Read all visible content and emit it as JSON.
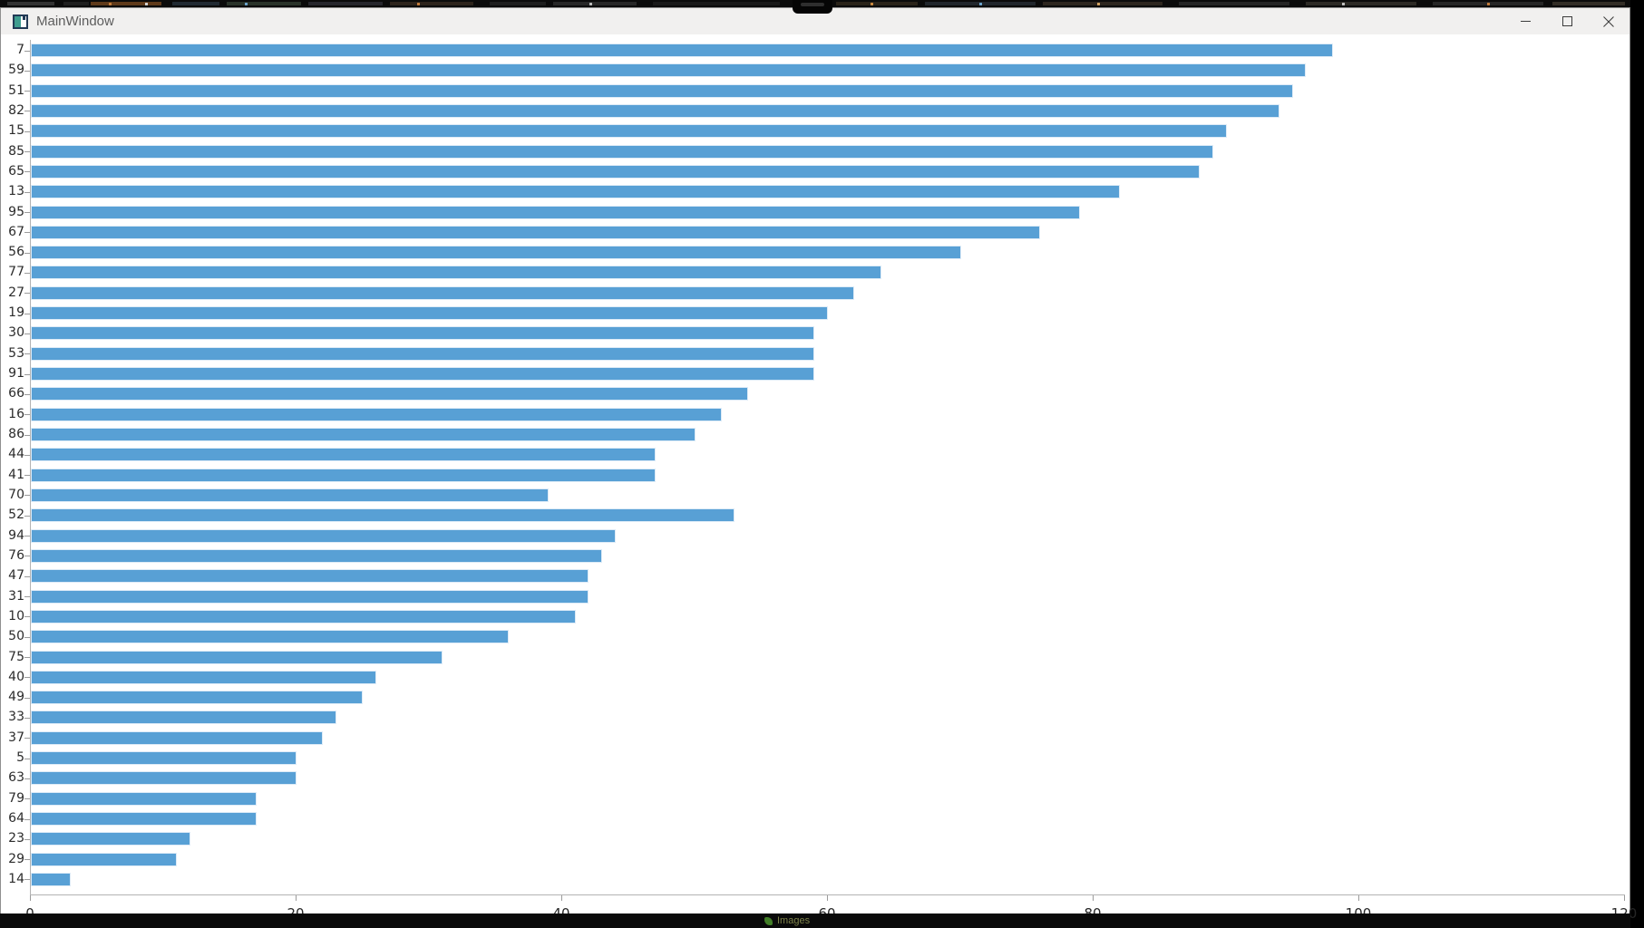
{
  "window": {
    "title": "MainWindow",
    "buttons": [
      {
        "name": "minimize"
      },
      {
        "name": "maximize"
      },
      {
        "name": "close"
      }
    ]
  },
  "chart_data": {
    "type": "bar",
    "orientation": "horizontal",
    "title": "",
    "xlabel": "",
    "ylabel": "",
    "grid": false,
    "legend": null,
    "xlim": [
      0,
      120
    ],
    "x_ticks": [
      0,
      20,
      40,
      60,
      80,
      100,
      120
    ],
    "bar_color": "#58a0d5",
    "bar_edge_color": "#ddebf7",
    "categories": [
      "7",
      "59",
      "51",
      "82",
      "15",
      "85",
      "65",
      "13",
      "95",
      "67",
      "56",
      "77",
      "27",
      "19",
      "30",
      "53",
      "91",
      "66",
      "16",
      "86",
      "44",
      "41",
      "70",
      "52",
      "94",
      "76",
      "47",
      "31",
      "10",
      "50",
      "75",
      "40",
      "49",
      "33",
      "37",
      "5",
      "63",
      "79",
      "64",
      "23",
      "29",
      "14"
    ],
    "values": [
      98,
      96,
      95,
      94,
      90,
      89,
      88,
      82,
      79,
      76,
      70,
      64,
      62,
      60,
      59,
      59,
      59,
      54,
      52,
      50,
      47,
      47,
      39,
      53,
      44,
      43,
      42,
      42,
      41,
      36,
      31,
      26,
      25,
      23,
      22,
      20,
      20,
      17,
      17,
      12,
      11,
      3
    ]
  },
  "background": {
    "bottom_label": "Images"
  }
}
